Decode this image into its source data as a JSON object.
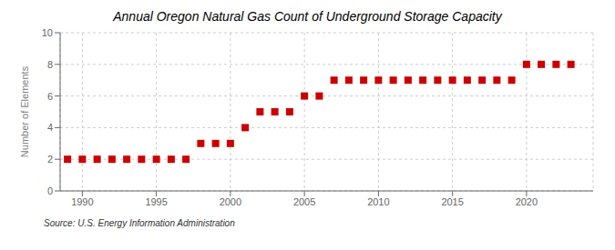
{
  "chart_data": {
    "type": "scatter",
    "title": "Annual Oregon Natural Gas Count of Underground Storage Capacity",
    "ylabel": "Number of Elements",
    "source": "Source: U.S. Energy Information Administration",
    "x": [
      1989,
      1990,
      1991,
      1992,
      1993,
      1994,
      1995,
      1996,
      1997,
      1998,
      1999,
      2000,
      2001,
      2002,
      2003,
      2004,
      2005,
      2006,
      2007,
      2008,
      2009,
      2010,
      2011,
      2012,
      2013,
      2014,
      2015,
      2016,
      2017,
      2018,
      2019,
      2020,
      2021,
      2022,
      2023
    ],
    "values": [
      2,
      2,
      2,
      2,
      2,
      2,
      2,
      2,
      2,
      3,
      3,
      3,
      4,
      5,
      5,
      5,
      6,
      6,
      7,
      7,
      7,
      7,
      7,
      7,
      7,
      7,
      7,
      7,
      7,
      7,
      7,
      8,
      8,
      8,
      8
    ],
    "color": "#cc0000",
    "marker": "square",
    "xlim": [
      1988.5,
      2024.5
    ],
    "ylim": [
      0,
      10
    ],
    "xticks": [
      1990,
      1995,
      2000,
      2005,
      2010,
      2015,
      2020
    ],
    "yticks": [
      0,
      2,
      4,
      6,
      8,
      10
    ],
    "grid": true
  }
}
